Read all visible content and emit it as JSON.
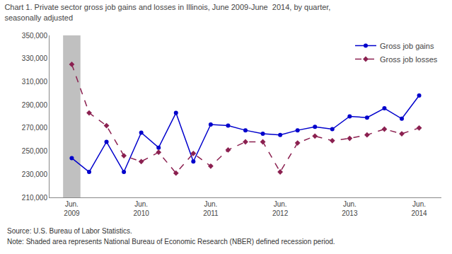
{
  "chart_data": {
    "type": "line",
    "title": "Chart 1. Private sector gross job gains and losses in Illinois, June 2009-June  2014, by quarter,",
    "subtitle": "seasonally adjusted",
    "annotations": [
      "Source: U.S. Bureau of Labor Statistics.",
      "Note: Shaded area represents National Bureau of Economic Research (NBER) defined recession period."
    ],
    "categories": [
      "Jun.\n2009",
      null,
      null,
      null,
      "Jun.\n2010",
      null,
      null,
      null,
      "Jun.\n2011",
      null,
      null,
      null,
      "Jun.\n2012",
      null,
      null,
      null,
      "Jun.\n2013",
      null,
      null,
      null,
      "Jun.\n2014"
    ],
    "series": [
      {
        "name": "Gross job gains",
        "color": "#0000CC",
        "line_style": "solid",
        "marker": "circle",
        "values": [
          244000,
          232000,
          258000,
          232000,
          266000,
          253000,
          283000,
          241000,
          273000,
          272000,
          268000,
          265000,
          264000,
          268000,
          271000,
          269000,
          280000,
          279000,
          287000,
          278000,
          298000
        ]
      },
      {
        "name": "Gross job losses",
        "color": "#8B2050",
        "line_style": "dash",
        "marker": "diamond",
        "values": [
          325000,
          283000,
          272000,
          246000,
          241000,
          249000,
          231000,
          248000,
          237000,
          251000,
          258000,
          258000,
          232000,
          257000,
          263000,
          259000,
          261000,
          264000,
          269000,
          265000,
          270000
        ]
      }
    ],
    "shade": {
      "from": 0,
      "to": 0,
      "color": "#C0C0C0"
    },
    "ylim": [
      210000,
      350000
    ],
    "yticks": [
      {
        "value": 210000,
        "label": "210,000"
      },
      {
        "value": 230000,
        "label": "230,000"
      },
      {
        "value": 250000,
        "label": "250,000"
      },
      {
        "value": 270000,
        "label": "270,000"
      },
      {
        "value": 290000,
        "label": "290,000"
      },
      {
        "value": 310000,
        "label": "310,000"
      },
      {
        "value": 330000,
        "label": "330,000"
      },
      {
        "value": 350000,
        "label": "350,000"
      }
    ],
    "grid": false,
    "legend": "upper right"
  }
}
